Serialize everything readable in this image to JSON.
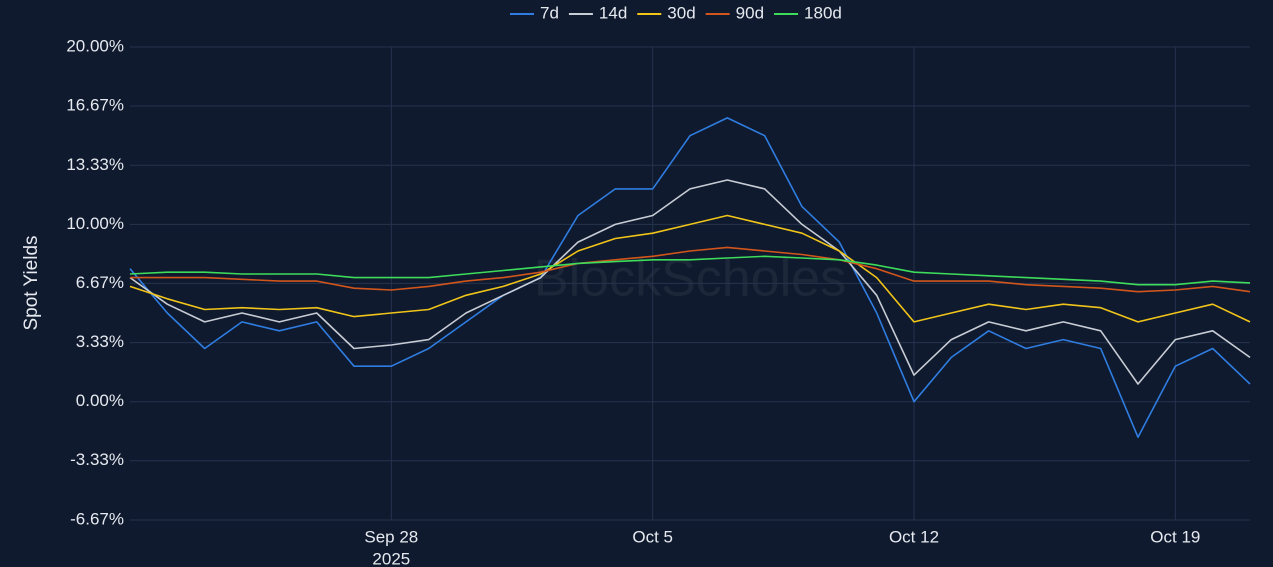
{
  "chart_data": {
    "type": "line",
    "y_axis_label": "Spot Yields",
    "watermark": "BlockScholes",
    "x": [
      "2025-09-21",
      "2025-09-22",
      "2025-09-23",
      "2025-09-24",
      "2025-09-25",
      "2025-09-26",
      "2025-09-27",
      "2025-09-28",
      "2025-09-29",
      "2025-09-30",
      "2025-10-01",
      "2025-10-02",
      "2025-10-03",
      "2025-10-04",
      "2025-10-05",
      "2025-10-06",
      "2025-10-07",
      "2025-10-08",
      "2025-10-09",
      "2025-10-10",
      "2025-10-11",
      "2025-10-12",
      "2025-10-13",
      "2025-10-14",
      "2025-10-15",
      "2025-10-16",
      "2025-10-17",
      "2025-10-18",
      "2025-10-19",
      "2025-10-20",
      "2025-10-21"
    ],
    "xlim": [
      "2025-09-21",
      "2025-10-21"
    ],
    "xticks": [
      {
        "value": "2025-09-28",
        "label": "Sep 28",
        "sublabel": "2025"
      },
      {
        "value": "2025-10-05",
        "label": "Oct 5"
      },
      {
        "value": "2025-10-12",
        "label": "Oct 12"
      },
      {
        "value": "2025-10-19",
        "label": "Oct 19"
      }
    ],
    "ylim": [
      -6.67,
      20
    ],
    "yticks": [
      {
        "value": 20,
        "label": "20.00%"
      },
      {
        "value": 16.67,
        "label": "16.67%"
      },
      {
        "value": 13.33,
        "label": "13.33%"
      },
      {
        "value": 10,
        "label": "10.00%"
      },
      {
        "value": 6.67,
        "label": "6.67%"
      },
      {
        "value": 3.33,
        "label": "3.33%"
      },
      {
        "value": 0,
        "label": "0.00%"
      },
      {
        "value": -3.33,
        "label": "-3.33%"
      },
      {
        "value": -6.67,
        "label": "-6.67%"
      }
    ],
    "grid": true,
    "series": [
      {
        "name": "7d",
        "color": "#2f7de1",
        "values": [
          7.5,
          5,
          3,
          4.5,
          4,
          4.5,
          2,
          2,
          3,
          4.5,
          6,
          7,
          10.5,
          12,
          12,
          15,
          16,
          15,
          11,
          9,
          5,
          0,
          2.5,
          4,
          3,
          3.5,
          3,
          -2,
          2,
          3,
          1
        ]
      },
      {
        "name": "14d",
        "color": "#c8ccd4",
        "values": [
          7,
          5.5,
          4.5,
          5,
          4.5,
          5,
          3,
          3.2,
          3.5,
          5,
          6,
          7,
          9,
          10,
          10.5,
          12,
          12.5,
          12,
          10,
          8.5,
          6,
          1.5,
          3.5,
          4.5,
          4,
          4.5,
          4,
          1,
          3.5,
          4,
          2.5
        ]
      },
      {
        "name": "30d",
        "color": "#f0c419",
        "values": [
          6.5,
          5.8,
          5.2,
          5.3,
          5.2,
          5.3,
          4.8,
          5,
          5.2,
          6,
          6.5,
          7.2,
          8.5,
          9.2,
          9.5,
          10,
          10.5,
          10,
          9.5,
          8.5,
          7,
          4.5,
          5,
          5.5,
          5.2,
          5.5,
          5.3,
          4.5,
          5,
          5.5,
          4.5
        ]
      },
      {
        "name": "90d",
        "color": "#d2561b",
        "values": [
          7,
          7,
          7,
          6.9,
          6.8,
          6.8,
          6.4,
          6.3,
          6.5,
          6.8,
          7,
          7.3,
          7.8,
          8,
          8.2,
          8.5,
          8.7,
          8.5,
          8.3,
          8,
          7.5,
          6.8,
          6.8,
          6.8,
          6.6,
          6.5,
          6.4,
          6.2,
          6.3,
          6.5,
          6.2
        ]
      },
      {
        "name": "180d",
        "color": "#3ddc5a",
        "values": [
          7.2,
          7.3,
          7.3,
          7.2,
          7.2,
          7.2,
          7,
          7,
          7,
          7.2,
          7.4,
          7.6,
          7.8,
          7.9,
          8,
          8,
          8.1,
          8.2,
          8.1,
          8,
          7.7,
          7.3,
          7.2,
          7.1,
          7,
          6.9,
          6.8,
          6.6,
          6.6,
          6.8,
          6.7
        ]
      }
    ]
  }
}
